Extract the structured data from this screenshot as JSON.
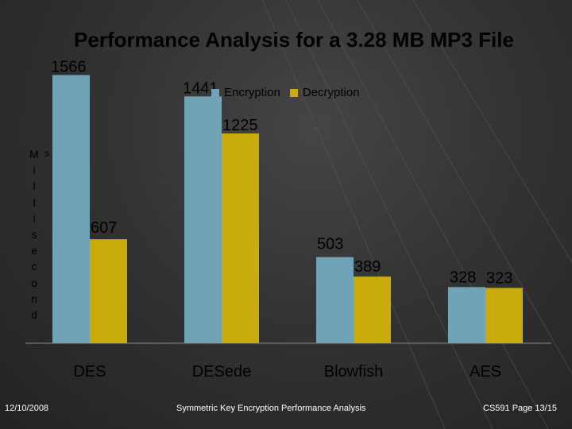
{
  "footer": {
    "date": "12/10/2008",
    "center": "Symmetric Key Encryption Performance Analysis",
    "page": "CS591 Page 13/15"
  },
  "colors": {
    "encryption": "#6fa3b5",
    "decryption": "#c9ab0b",
    "axis": "#6a6a6a"
  },
  "chart_data": {
    "type": "bar",
    "title": "Performance Analysis for a 3.28 MB MP3 File",
    "ylabel": "Milliseconds",
    "xlabel": "",
    "categories": [
      "DES",
      "DESede",
      "Blowfish",
      "AES"
    ],
    "series": [
      {
        "name": "Encryption",
        "values": [
          1566,
          1441,
          503,
          328
        ]
      },
      {
        "name": "Decryption",
        "values": [
          607,
          1225,
          389,
          323
        ]
      }
    ],
    "ylim": [
      0,
      1800
    ],
    "legend": "top-center",
    "grid": false
  }
}
